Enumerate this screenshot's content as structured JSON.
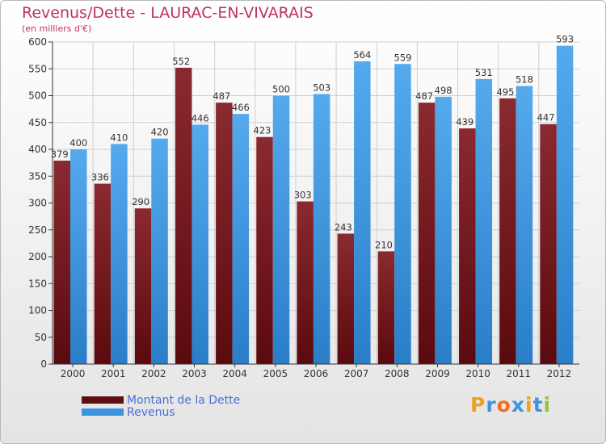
{
  "title": "Revenus/Dette - LAURAC-EN-VIVARAIS",
  "subtitle": "(en milliers d'€)",
  "colors": {
    "debt": "#7a2128",
    "revenue": "#3d94dd",
    "grid": "#cfcfcf",
    "axis": "#333333",
    "label": "#333333",
    "title": "#c0306a",
    "legend_text": "#4a6fd6"
  },
  "legend": [
    {
      "label": "Montant de la Dette",
      "color": "#5e0e12"
    },
    {
      "label": "Revenus",
      "color": "#3d94dd"
    }
  ],
  "logo": {
    "text": "Proxiti",
    "letters": [
      {
        "ch": "P",
        "color": "#f0a020"
      },
      {
        "ch": "r",
        "color": "#3d94dd"
      },
      {
        "ch": "o",
        "color": "#f07020"
      },
      {
        "ch": "x",
        "color": "#3d94dd"
      },
      {
        "ch": "i",
        "color": "#f0a020"
      },
      {
        "ch": "t",
        "color": "#3d94dd"
      },
      {
        "ch": "i",
        "color": "#8cc63f"
      }
    ]
  },
  "chart_data": {
    "type": "bar",
    "title": "Revenus/Dette - LAURAC-EN-VIVARAIS",
    "subtitle": "(en milliers d'€)",
    "categories": [
      "2000",
      "2001",
      "2002",
      "2003",
      "2004",
      "2005",
      "2006",
      "2007",
      "2008",
      "2009",
      "2010",
      "2011",
      "2012"
    ],
    "series": [
      {
        "name": "Montant de la Dette",
        "values": [
          379,
          336,
          290,
          552,
          487,
          423,
          303,
          243,
          210,
          487,
          439,
          495,
          447
        ]
      },
      {
        "name": "Revenus",
        "values": [
          400,
          410,
          420,
          446,
          466,
          500,
          503,
          564,
          559,
          498,
          531,
          518,
          593
        ]
      }
    ],
    "ylim": [
      0,
      600
    ],
    "yticks": [
      0,
      50,
      100,
      150,
      200,
      250,
      300,
      350,
      400,
      450,
      500,
      550,
      600
    ],
    "grid": true,
    "legend_position": "bottom-left"
  }
}
